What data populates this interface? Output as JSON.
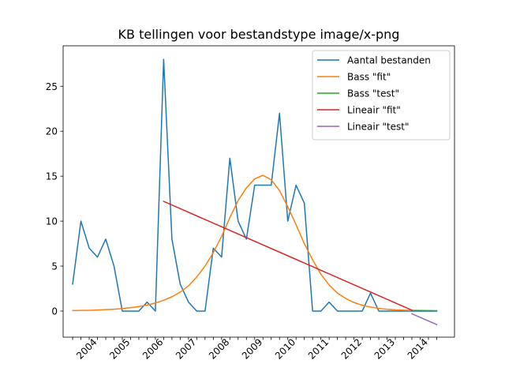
{
  "chart_data": {
    "type": "line",
    "title": "KB tellingen voor bestandstype image/x-png",
    "xlabel": "",
    "ylabel": "",
    "x_ticks": [
      "2004",
      "2005",
      "2006",
      "2007",
      "2008",
      "2009",
      "2010",
      "2011",
      "2012",
      "2013",
      "2014"
    ],
    "x_range": [
      -1.15,
      46.15
    ],
    "y_ticks": [
      0,
      5,
      10,
      15,
      20,
      25
    ],
    "ylim": [
      -2.9,
      29.5
    ],
    "grid": false,
    "legend_position": "top-right",
    "series": [
      {
        "name": "Aantal bestanden",
        "color": "#1f77b4",
        "x": [
          0,
          1,
          2,
          3,
          4,
          5,
          6,
          7,
          8,
          9,
          10,
          11,
          12,
          13,
          14,
          15,
          16,
          17,
          18,
          19,
          20,
          21,
          22,
          23,
          24,
          25,
          26,
          27,
          28,
          29,
          30,
          31,
          32,
          33,
          34,
          35,
          36,
          37,
          38,
          39,
          40,
          41,
          42,
          43,
          44
        ],
        "values": [
          3,
          10,
          7,
          6,
          8,
          5,
          0,
          0,
          0,
          1,
          0,
          28,
          8,
          3,
          1,
          0,
          0,
          7,
          6,
          17,
          10,
          8,
          14,
          14,
          14,
          22,
          10,
          14,
          12,
          0,
          0,
          1,
          0,
          0,
          0,
          0,
          2,
          0,
          0,
          0,
          0,
          0,
          0,
          0,
          0
        ]
      },
      {
        "name": "Bass \"fit\"",
        "color": "#ff7f0e",
        "x": [
          0,
          1,
          2,
          3,
          4,
          5,
          6,
          7,
          8,
          9,
          10,
          11,
          12,
          13,
          14,
          15,
          16,
          17,
          18,
          19,
          20,
          21,
          22,
          23,
          24,
          25,
          26,
          27,
          28,
          29,
          30,
          31,
          32,
          33,
          34,
          35,
          36,
          37,
          38,
          39,
          40,
          41
        ],
        "values": [
          0.05,
          0.07,
          0.09,
          0.12,
          0.16,
          0.21,
          0.28,
          0.38,
          0.5,
          0.67,
          0.9,
          1.2,
          1.6,
          2.1,
          2.8,
          3.8,
          5.0,
          6.5,
          8.3,
          10.4,
          12.3,
          13.7,
          14.7,
          15.1,
          14.6,
          13.4,
          11.6,
          9.6,
          7.5,
          5.7,
          4.1,
          2.9,
          2.0,
          1.4,
          0.95,
          0.65,
          0.45,
          0.3,
          0.2,
          0.14,
          0.1,
          0.07
        ]
      },
      {
        "name": "Bass \"test\"",
        "color": "#2ca02c",
        "x": [
          41,
          42,
          43,
          44
        ],
        "values": [
          0.07,
          0.06,
          0.05,
          0.04
        ]
      },
      {
        "name": "Lineair \"fit\"",
        "color": "#d62728",
        "x": [
          11,
          41
        ],
        "values": [
          12.2,
          0.1
        ]
      },
      {
        "name": "Lineair \"test\"",
        "color": "#9467bd",
        "x": [
          41,
          44
        ],
        "values": [
          -0.3,
          -1.5
        ]
      }
    ]
  }
}
